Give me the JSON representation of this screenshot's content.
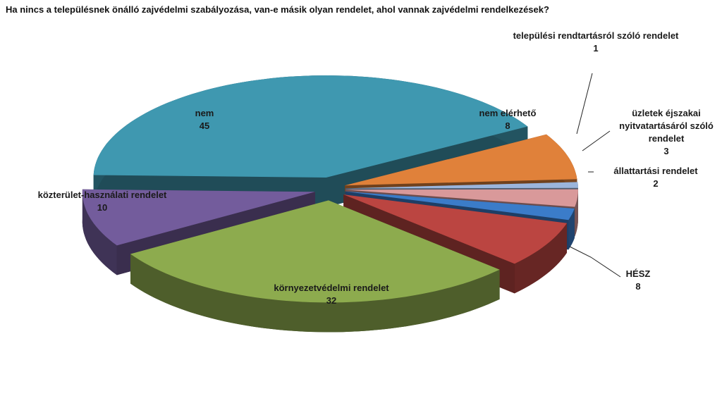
{
  "chart_data": {
    "type": "pie",
    "title": "Ha nincs a településnek önálló zajvédelmi szabályozása, van-e másik olyan rendelet, ahol vannak zajvédelmi rendelkezések?",
    "categories": [
      "nem elérhető",
      "települési rendtartásról szóló rendelet",
      "üzletek éjszakai nyitvatartásáról szóló rendelet",
      "állattartási rendelet",
      "HÉSZ",
      "környezetvédelmi rendelet",
      "közterület-használati rendelet",
      "nem"
    ],
    "values": [
      8,
      1,
      3,
      2,
      8,
      32,
      10,
      45
    ],
    "colors": [
      "#e0813a",
      "#9bb5dc",
      "#d9999a",
      "#3b7cc9",
      "#bb4541",
      "#8dab4e",
      "#735c9c",
      "#3f98b0"
    ]
  }
}
